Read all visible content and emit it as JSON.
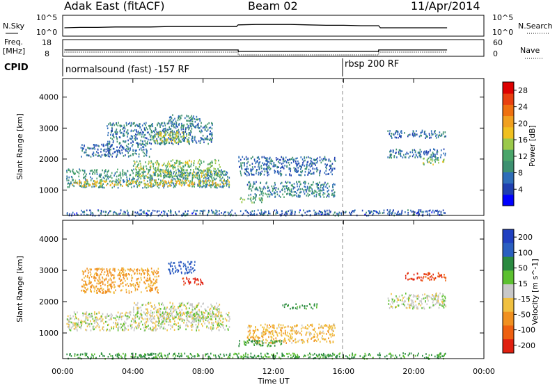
{
  "header": {
    "station": "Adak East (fitACF)",
    "beam": "Beam 02",
    "date": "11/Apr/2014"
  },
  "panels": {
    "nsky_label": "N.Sky",
    "nsearch_label": "N.Search",
    "freq_label": "Freq.",
    "freq_unit": "[MHz]",
    "nave_label": "Nave",
    "cpid_label": "CPID",
    "nsky_ticks": [
      "10^5",
      "10^0"
    ],
    "nsearch_ticks": [
      "10^5",
      "10^0"
    ],
    "freq_ticks": [
      "18",
      "8"
    ],
    "nave_ticks": [
      "60",
      "0"
    ],
    "cpid_segments": [
      {
        "label": "normalsound (fast) -157 RF",
        "start_h": 0.0
      },
      {
        "label": "rbsp 200 RF",
        "start_h": 16.0
      }
    ]
  },
  "colors": {
    "power_scale": [
      "#0000ff",
      "#1f3fb0",
      "#2e6db8",
      "#3d9070",
      "#4aa56a",
      "#9bc94b",
      "#f0c020",
      "#f0a020",
      "#ee7010",
      "#e84010",
      "#dd0000"
    ],
    "velocity_scale": [
      "#2040c0",
      "#2a5fc0",
      "#2a8a40",
      "#5cc030",
      "#c8c8c8",
      "#f0c040",
      "#f09020",
      "#ee6010",
      "#e02010"
    ],
    "ground_scatter": "#c0c0c0"
  },
  "chart_data": [
    {
      "type": "line",
      "name": "N.Sky / N.Search",
      "x_hours": [
        0.1,
        1,
        2,
        3,
        4,
        5,
        6,
        7,
        8,
        9,
        9.9,
        10,
        11,
        12,
        13,
        14,
        15,
        16,
        17,
        18,
        18.1,
        19,
        20,
        21,
        21.9
      ],
      "y_log10": [
        2.0,
        2.1,
        2.1,
        2.2,
        2.2,
        2.2,
        2.3,
        2.3,
        2.3,
        2.3,
        2.3,
        2.7,
        2.8,
        2.8,
        2.8,
        2.7,
        2.6,
        2.6,
        2.5,
        2.5,
        2.0,
        2.0,
        2.0,
        2.0,
        2.0
      ],
      "ylim_log10": [
        0,
        5
      ]
    },
    {
      "type": "line",
      "name": "Freq. / Nave",
      "freq_mhz": {
        "x_hours": [
          0.1,
          10.0,
          10.0,
          18.0,
          18.0,
          21.9
        ],
        "y": [
          11.8,
          11.8,
          10.9,
          10.9,
          11.8,
          11.8
        ]
      },
      "nave": {
        "x_hours": [
          0.1,
          10.0,
          10.0,
          18.0,
          18.0,
          21.9
        ],
        "y": [
          15,
          15,
          5,
          5,
          15,
          15
        ]
      },
      "freq_lim": [
        8,
        18
      ],
      "nave_lim": [
        0,
        60
      ]
    },
    {
      "type": "heatmap",
      "title": "Power",
      "xlabel": "Time UT",
      "ylabel": "Slant Range [km]",
      "colorbar_label": "Power [dB]",
      "colorbar_ticks": [
        4,
        8,
        12,
        16,
        20,
        24,
        28
      ],
      "colorbar_range": [
        0,
        30
      ],
      "xlim_hours": [
        0,
        24
      ],
      "x_ticks": [
        "00:00",
        "04:00",
        "08:00",
        "12:00",
        "16:00",
        "20:00",
        "00:00"
      ],
      "ylim_km": [
        180,
        4600
      ],
      "y_ticks": [
        1000,
        2000,
        3000,
        4000
      ],
      "regions": [
        {
          "t": [
            0.2,
            9.5
          ],
          "r": [
            1100,
            1700
          ],
          "v": 9
        },
        {
          "t": [
            0.5,
            9.5
          ],
          "r": [
            1150,
            1350
          ],
          "v": 18
        },
        {
          "t": [
            4.0,
            9.0
          ],
          "r": [
            1450,
            2000
          ],
          "v": 14
        },
        {
          "t": [
            1.0,
            5.0
          ],
          "r": [
            2100,
            2500
          ],
          "v": 6
        },
        {
          "t": [
            2.5,
            8.5
          ],
          "r": [
            2500,
            3200
          ],
          "v": 7
        },
        {
          "t": [
            5.0,
            7.2
          ],
          "r": [
            2550,
            2900
          ],
          "v": 15
        },
        {
          "t": [
            6.0,
            7.8
          ],
          "r": [
            3000,
            3450
          ],
          "v": 8
        },
        {
          "t": [
            10.0,
            15.5
          ],
          "r": [
            1500,
            2100
          ],
          "v": 6
        },
        {
          "t": [
            10.5,
            15.5
          ],
          "r": [
            800,
            1300
          ],
          "v": 8
        },
        {
          "t": [
            10.0,
            11.5
          ],
          "r": [
            620,
            780
          ],
          "v": 12
        },
        {
          "t": [
            18.5,
            21.8
          ],
          "r": [
            2050,
            2350
          ],
          "v": 7
        },
        {
          "t": [
            20.5,
            21.8
          ],
          "r": [
            1850,
            2050
          ],
          "v": 14
        },
        {
          "t": [
            18.5,
            21.8
          ],
          "r": [
            2700,
            2950
          ],
          "v": 6
        },
        {
          "t": [
            0.2,
            21.8
          ],
          "r": [
            200,
            380
          ],
          "v": 5
        }
      ]
    },
    {
      "type": "heatmap",
      "title": "Velocity",
      "xlabel": "Time UT",
      "ylabel": "Slant Range [km]",
      "colorbar_label": "Velocity [m s^-1]",
      "colorbar_ticks": [
        "200",
        "100",
        "50",
        "15",
        "-15",
        "-50",
        "-100",
        "-200"
      ],
      "colorbar_range": [
        -250,
        250
      ],
      "xlim_hours": [
        0,
        24
      ],
      "x_ticks": [
        "00:00",
        "04:00",
        "08:00",
        "12:00",
        "16:00",
        "20:00",
        "00:00"
      ],
      "ylim_km": [
        180,
        4600
      ],
      "y_ticks": [
        1000,
        2000,
        3000,
        4000
      ],
      "regions": [
        {
          "t": [
            0.2,
            9.5
          ],
          "r": [
            1100,
            1700
          ],
          "v": 0
        },
        {
          "t": [
            4.0,
            9.0
          ],
          "r": [
            1450,
            2000
          ],
          "v": 0
        },
        {
          "t": [
            1.0,
            5.5
          ],
          "r": [
            2300,
            3100
          ],
          "v": -60
        },
        {
          "t": [
            6.8,
            8.0
          ],
          "r": [
            2550,
            2800
          ],
          "v": -220
        },
        {
          "t": [
            6.0,
            7.5
          ],
          "r": [
            2900,
            3300
          ],
          "v": 180
        },
        {
          "t": [
            10.5,
            15.5
          ],
          "r": [
            700,
            1300
          ],
          "v": -40
        },
        {
          "t": [
            10.0,
            12.5
          ],
          "r": [
            600,
            800
          ],
          "v": 60
        },
        {
          "t": [
            12.5,
            14.5
          ],
          "r": [
            1800,
            1950
          ],
          "v": 60
        },
        {
          "t": [
            18.5,
            21.8
          ],
          "r": [
            1800,
            2300
          ],
          "v": 0
        },
        {
          "t": [
            19.5,
            21.8
          ],
          "r": [
            2700,
            2950
          ],
          "v": -200
        },
        {
          "t": [
            0.2,
            21.8
          ],
          "r": [
            200,
            380
          ],
          "v": 60
        }
      ]
    }
  ]
}
